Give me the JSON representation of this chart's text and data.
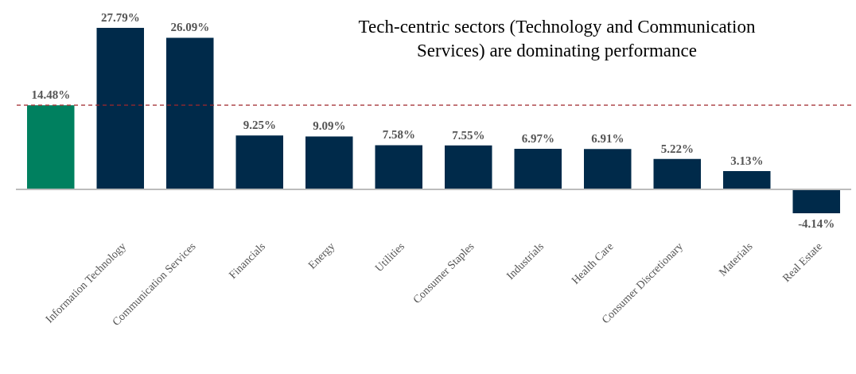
{
  "chart_data": {
    "type": "bar",
    "title": "Tech-centric sectors (Technology and Communication Services) are dominating performance",
    "categories": [
      null,
      "Information Technology",
      "Communication Services",
      "Financials",
      "Energy",
      "Utilities",
      "Consumer Staples",
      "Industrials",
      "Health Care",
      "Consumer Discretionary",
      "Materials",
      "Real Estate"
    ],
    "values": [
      14.48,
      27.79,
      26.09,
      9.25,
      9.09,
      7.58,
      7.55,
      6.97,
      6.91,
      5.22,
      3.13,
      -4.14
    ],
    "value_labels": [
      "14.48%",
      "27.79%",
      "26.09%",
      "9.25%",
      "9.09%",
      "7.58%",
      "7.55%",
      "6.97%",
      "6.91%",
      "5.22%",
      "3.13%",
      "-4.14%"
    ],
    "colors": [
      "#00805f",
      "#002a4a",
      "#002a4a",
      "#002a4a",
      "#002a4a",
      "#002a4a",
      "#002a4a",
      "#002a4a",
      "#002a4a",
      "#002a4a",
      "#002a4a",
      "#002a4a"
    ],
    "ref_lines": [
      {
        "axis": "y",
        "value": 14.48,
        "color": "#a0282d",
        "line_style": "dashed"
      }
    ]
  }
}
